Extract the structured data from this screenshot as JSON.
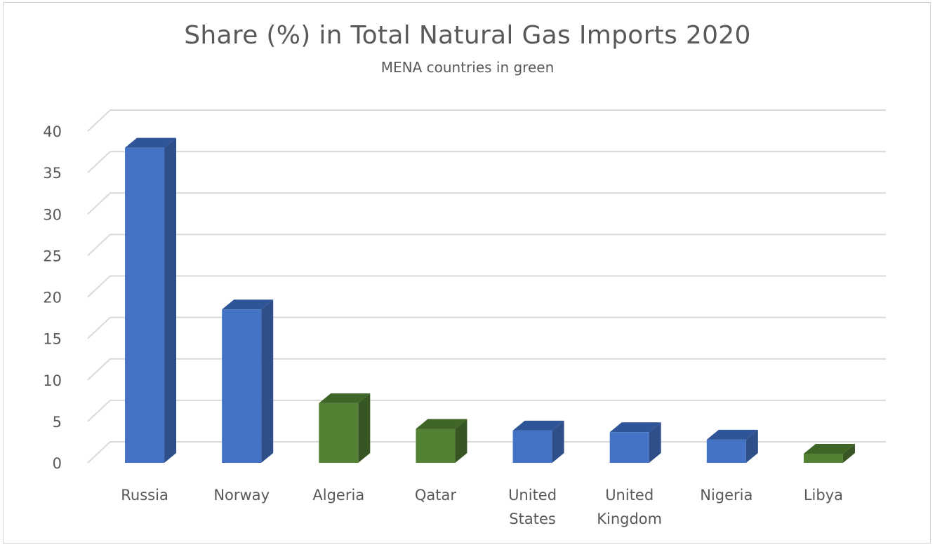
{
  "chart_data": {
    "type": "bar",
    "title": "Share (%) in Total Natural Gas Imports 2020",
    "subtitle": "MENA countries in green",
    "xlabel": "",
    "ylabel": "",
    "categories": [
      "Russia",
      "Norway",
      "Algeria",
      "Qatar",
      "United States",
      "United Kingdom",
      "Nigeria",
      "Libya"
    ],
    "category_lines": [
      [
        "Russia"
      ],
      [
        "Norway"
      ],
      [
        "Algeria"
      ],
      [
        "Qatar"
      ],
      [
        "United",
        "States"
      ],
      [
        "United",
        "Kingdom"
      ],
      [
        "Nigeria"
      ],
      [
        "Libya"
      ]
    ],
    "values": [
      38,
      18.5,
      7.2,
      4.1,
      3.9,
      3.7,
      2.8,
      1.1
    ],
    "mena": [
      false,
      false,
      true,
      true,
      false,
      false,
      false,
      true
    ],
    "ylim": [
      0,
      40
    ],
    "yticks": [
      0,
      5,
      10,
      15,
      20,
      25,
      30,
      35,
      40
    ],
    "grid": true,
    "legend": "none",
    "colors": {
      "default": "#4472c4",
      "default_side": "#2f4f8a",
      "default_top": "#2e5597",
      "mena": "#548235",
      "mena_side": "#375623",
      "mena_top": "#3f6527",
      "grid": "#d9d9d9",
      "text": "#595959"
    }
  }
}
